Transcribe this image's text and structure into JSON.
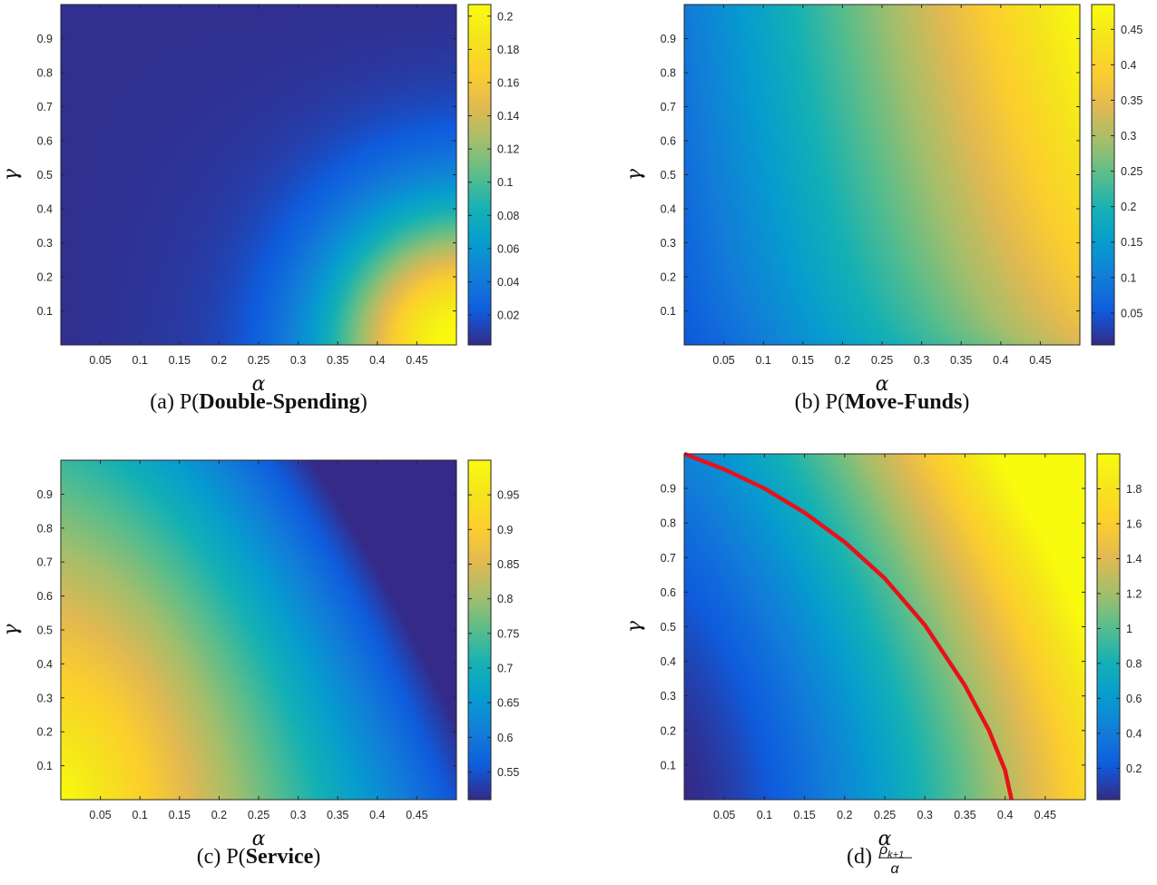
{
  "chart_data": [
    {
      "type": "heatmap",
      "panel": "a",
      "caption_prefix": "(a) P(",
      "caption_bold": "Double-Spending",
      "caption_suffix": ")",
      "xlabel": "α",
      "ylabel": "γ",
      "xlim": [
        0,
        0.5
      ],
      "ylim": [
        0,
        1
      ],
      "xticks": [
        "0.05",
        "0.1",
        "0.15",
        "0.2",
        "0.25",
        "0.3",
        "0.35",
        "0.4",
        "0.45"
      ],
      "yticks": [
        "0.1",
        "0.2",
        "0.3",
        "0.4",
        "0.5",
        "0.6",
        "0.7",
        "0.8",
        "0.9"
      ],
      "colorbar": {
        "min": 0.002,
        "max": 0.207,
        "ticks": [
          "0.02",
          "0.04",
          "0.06",
          "0.08",
          "0.1",
          "0.12",
          "0.14",
          "0.16",
          "0.18",
          "0.2"
        ]
      },
      "colormap": "parula",
      "z_range": [
        0.002,
        0.207
      ],
      "pattern": "near 0 almost everywhere; rises sharply toward high α and low γ (bottom-right corner ≈ 0.2)"
    },
    {
      "type": "heatmap",
      "panel": "b",
      "caption_prefix": "(b) P(",
      "caption_bold": "Move-Funds",
      "caption_suffix": ")",
      "xlabel": "α",
      "ylabel": "γ",
      "xlim": [
        0,
        0.5
      ],
      "ylim": [
        0,
        1
      ],
      "xticks": [
        "0.05",
        "0.1",
        "0.15",
        "0.2",
        "0.25",
        "0.3",
        "0.35",
        "0.4",
        "0.45"
      ],
      "yticks": [
        "0.1",
        "0.2",
        "0.3",
        "0.4",
        "0.5",
        "0.6",
        "0.7",
        "0.8",
        "0.9"
      ],
      "colorbar": {
        "min": 0.005,
        "max": 0.485,
        "ticks": [
          "0.05",
          "0.1",
          "0.15",
          "0.2",
          "0.25",
          "0.3",
          "0.35",
          "0.4",
          "0.45"
        ]
      },
      "colormap": "parula",
      "z_range": [
        0.005,
        0.485
      ],
      "pattern": "low along γ≈0 and α≈0; increases with α and γ up to ≈0.48 at top-right"
    },
    {
      "type": "heatmap",
      "panel": "c",
      "caption_prefix": "(c) P(",
      "caption_bold": "Service",
      "caption_suffix": ")",
      "xlabel": "α",
      "ylabel": "γ",
      "xlim": [
        0,
        0.5
      ],
      "ylim": [
        0,
        1
      ],
      "xticks": [
        "0.05",
        "0.1",
        "0.15",
        "0.2",
        "0.25",
        "0.3",
        "0.35",
        "0.4",
        "0.45"
      ],
      "yticks": [
        "0.1",
        "0.2",
        "0.3",
        "0.4",
        "0.5",
        "0.6",
        "0.7",
        "0.8",
        "0.9"
      ],
      "colorbar": {
        "min": 0.51,
        "max": 1.0,
        "ticks": [
          "0.55",
          "0.6",
          "0.65",
          "0.7",
          "0.75",
          "0.8",
          "0.85",
          "0.9",
          "0.95"
        ]
      },
      "colormap": "parula",
      "z_range": [
        0.51,
        1.0
      ],
      "pattern": "≈1 at low α; decreases as α and γ grow, ≈0.51 at top-right"
    },
    {
      "type": "heatmap",
      "panel": "d",
      "caption_prefix": "(d)",
      "caption_math_num": "ρ",
      "caption_math_sub": "k+1",
      "caption_math_den": "α",
      "xlabel": "α",
      "ylabel": "γ",
      "xlim": [
        0,
        0.5
      ],
      "ylim": [
        0,
        1
      ],
      "xticks": [
        "0.05",
        "0.1",
        "0.15",
        "0.2",
        "0.25",
        "0.3",
        "0.35",
        "0.4",
        "0.45"
      ],
      "yticks": [
        "0.1",
        "0.2",
        "0.3",
        "0.4",
        "0.5",
        "0.6",
        "0.7",
        "0.8",
        "0.9"
      ],
      "colorbar": {
        "min": 0.02,
        "max": 2.0,
        "ticks": [
          "0.2",
          "0.4",
          "0.6",
          "0.8",
          "1",
          "1.2",
          "1.4",
          "1.6",
          "1.8"
        ]
      },
      "colormap": "parula",
      "z_range": [
        0.02,
        2.0
      ],
      "pattern": "ratio increases with α and γ; contour z=1 shown in red",
      "overlay": {
        "type": "line",
        "color": "#e8111b",
        "x": [
          0.0,
          0.05,
          0.1,
          0.15,
          0.2,
          0.25,
          0.3,
          0.35,
          0.38,
          0.4,
          0.408
        ],
        "y": [
          1.0,
          0.955,
          0.9,
          0.83,
          0.745,
          0.64,
          0.505,
          0.33,
          0.2,
          0.085,
          0.0
        ]
      }
    }
  ]
}
